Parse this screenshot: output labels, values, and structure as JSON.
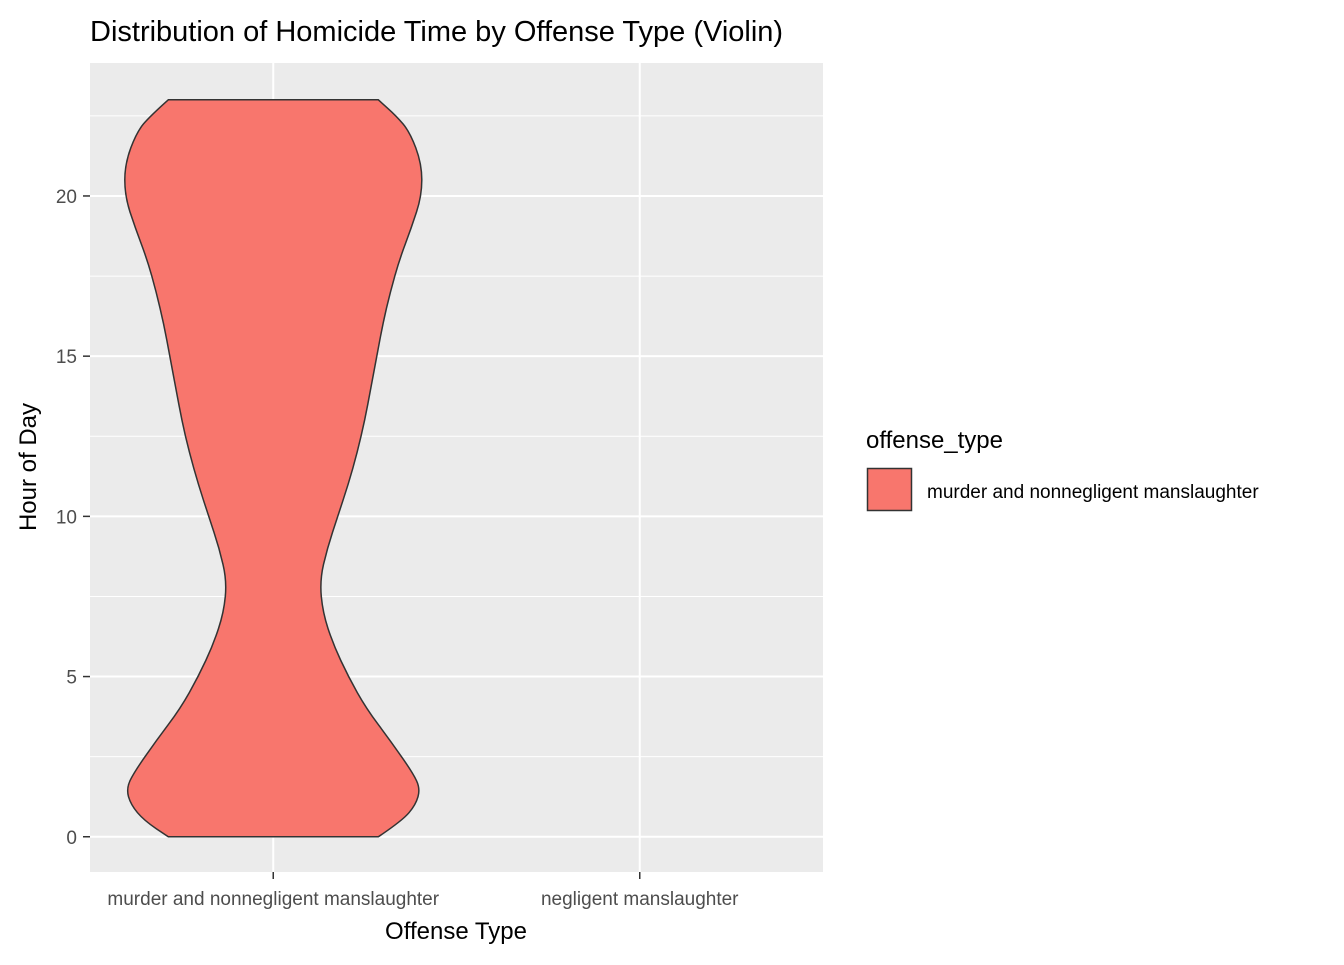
{
  "chart_data": {
    "type": "violin",
    "title": "Distribution of Homicide Time by Offense Type (Violin)",
    "xlabel": "Offense Type",
    "ylabel": "Hour of Day",
    "categories": [
      "murder and nonnegligent manslaughter",
      "negligent manslaughter"
    ],
    "ylim": [
      -1.1,
      24.15
    ],
    "y_ticks": [
      0,
      5,
      10,
      15,
      20
    ],
    "grid": true,
    "legend": {
      "title": "offense_type",
      "position": "right",
      "entries": [
        {
          "label": "murder and nonnegligent manslaughter",
          "color": "#F8766D"
        }
      ]
    },
    "series": [
      {
        "category": "murder and nonnegligent manslaughter",
        "color": "#F8766D",
        "density_profile": [
          {
            "hour": 0,
            "density": 0.7
          },
          {
            "hour": 0.5,
            "density": 0.86
          },
          {
            "hour": 1,
            "density": 0.95
          },
          {
            "hour": 1.5,
            "density": 0.98
          },
          {
            "hour": 2,
            "density": 0.93
          },
          {
            "hour": 3,
            "density": 0.78
          },
          {
            "hour": 4,
            "density": 0.62
          },
          {
            "hour": 5,
            "density": 0.5
          },
          {
            "hour": 6,
            "density": 0.4
          },
          {
            "hour": 7,
            "density": 0.33
          },
          {
            "hour": 8,
            "density": 0.31
          },
          {
            "hour": 9,
            "density": 0.36
          },
          {
            "hour": 10,
            "density": 0.43
          },
          {
            "hour": 11,
            "density": 0.5
          },
          {
            "hour": 12,
            "density": 0.56
          },
          {
            "hour": 13,
            "density": 0.61
          },
          {
            "hour": 14,
            "density": 0.65
          },
          {
            "hour": 15,
            "density": 0.69
          },
          {
            "hour": 16,
            "density": 0.73
          },
          {
            "hour": 17,
            "density": 0.78
          },
          {
            "hour": 18,
            "density": 0.84
          },
          {
            "hour": 19,
            "density": 0.92
          },
          {
            "hour": 20,
            "density": 0.99
          },
          {
            "hour": 21,
            "density": 0.99
          },
          {
            "hour": 22,
            "density": 0.91
          },
          {
            "hour": 22.5,
            "density": 0.82
          },
          {
            "hour": 23,
            "density": 0.7
          }
        ]
      }
    ]
  }
}
